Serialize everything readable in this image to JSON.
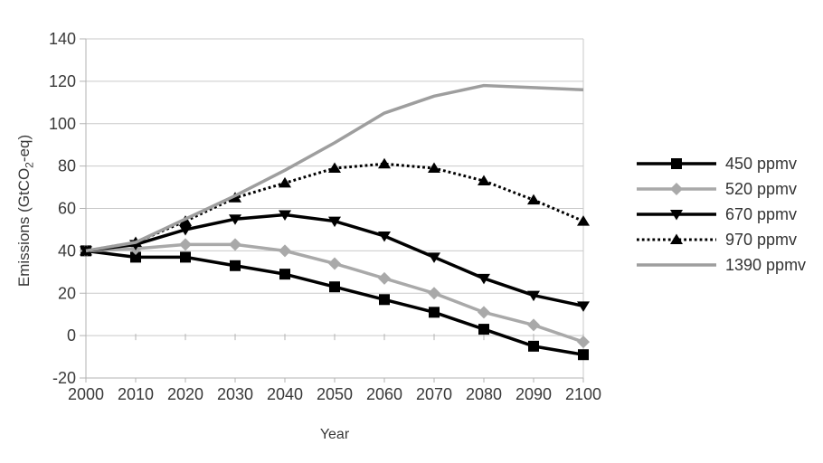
{
  "page": {
    "background": "#ffffff"
  },
  "chart_data": {
    "type": "line",
    "title": "",
    "xlabel": "Year",
    "ylabel": "Emissions (GtCO2-eq)",
    "ylabel_parts": {
      "prefix": "Emissions (GtCO",
      "subscript": "2",
      "suffix": "-eq)"
    },
    "x": [
      2000,
      2010,
      2020,
      2030,
      2040,
      2050,
      2060,
      2070,
      2080,
      2090,
      2100
    ],
    "x_tick_labels": [
      "2000",
      "2010",
      "2020",
      "2030",
      "2040",
      "2050",
      "2060",
      "2070",
      "2080",
      "2090",
      "2100"
    ],
    "y_ticks": [
      140,
      120,
      100,
      80,
      60,
      40,
      20,
      0,
      -20
    ],
    "ylim": [
      -20,
      140
    ],
    "grid": true,
    "legend_position": "right",
    "colors": {
      "black_series": "#000000",
      "gray_series": "#a9a9a9",
      "gridline": "#c9c9c9",
      "axis_frame": "#b3b3b3",
      "tick_text": "#383838"
    },
    "series": [
      {
        "name": "450 ppmv",
        "color": "#000000",
        "marker": "square",
        "dash": "solid",
        "values": [
          40,
          37,
          37,
          33,
          29,
          23,
          17,
          11,
          3,
          -5,
          -9
        ]
      },
      {
        "name": "520 ppmv",
        "color": "#a9a9a9",
        "marker": "diamond",
        "dash": "solid",
        "values": [
          40,
          41,
          43,
          43,
          40,
          34,
          27,
          20,
          11,
          5,
          -3
        ]
      },
      {
        "name": "670 ppmv",
        "color": "#000000",
        "marker": "triangle-down",
        "dash": "solid",
        "values": [
          40,
          43,
          50,
          55,
          57,
          54,
          47,
          37,
          27,
          19,
          14
        ]
      },
      {
        "name": "970 ppmv",
        "color": "#000000",
        "marker": "triangle-up",
        "dash": "dotted",
        "values": [
          40,
          44,
          54,
          65,
          72,
          79,
          81,
          79,
          73,
          64,
          54
        ]
      },
      {
        "name": "1390 ppmv",
        "color": "#9e9e9e",
        "marker": "none",
        "dash": "solid",
        "values": [
          40,
          44,
          55,
          66,
          78,
          91,
          105,
          113,
          118,
          117,
          116
        ]
      }
    ]
  }
}
